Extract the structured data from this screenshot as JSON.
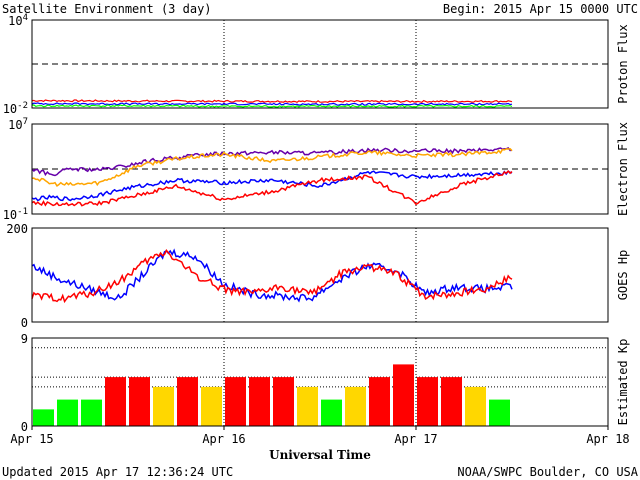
{
  "header": {
    "title": "Satellite Environment (3 day)",
    "begin": "Begin:  2015 Apr 15 0000 UTC"
  },
  "footer": {
    "updated": "Updated 2015 Apr 17 12:36:24 UTC",
    "credit": "NOAA/SWPC Boulder, CO USA"
  },
  "colors": {
    "red": "#ff0000",
    "blue": "#0000ff",
    "green": "#00ff00",
    "orange": "#ffa500",
    "purple": "#6600aa",
    "yellow": "#ffd700"
  },
  "chart_data": [
    {
      "id": "proton",
      "type": "line",
      "ylabel": "Proton Flux",
      "yscale": "log",
      "ylim": [
        0.01,
        10000
      ],
      "ytick_labels": [
        {
          "value": 10000,
          "base": "10",
          "exp": "4"
        },
        {
          "value": 0.01,
          "base": "10",
          "exp": "-2"
        }
      ],
      "reference_line": 10,
      "x_range_days": [
        0,
        3
      ],
      "series": [
        {
          "color": "#ff0000",
          "x": [
            0,
            0.5,
            1.0,
            1.5,
            2.0,
            2.5
          ],
          "y": [
            0.032,
            0.03,
            0.029,
            0.028,
            0.028,
            0.029
          ]
        },
        {
          "color": "#0000ff",
          "x": [
            0,
            0.5,
            1.0,
            1.5,
            2.0,
            2.5
          ],
          "y": [
            0.02,
            0.019,
            0.019,
            0.018,
            0.018,
            0.019
          ]
        },
        {
          "color": "#00ff00",
          "x": [
            0,
            0.5,
            1.0,
            1.5,
            2.0,
            2.5
          ],
          "y": [
            0.014,
            0.014,
            0.013,
            0.013,
            0.013,
            0.013
          ]
        }
      ]
    },
    {
      "id": "electron",
      "type": "line",
      "ylabel": "Electron Flux",
      "yscale": "log",
      "ylim": [
        0.1,
        10000000
      ],
      "ytick_labels": [
        {
          "value": 10000000,
          "base": "10",
          "exp": "7"
        },
        {
          "value": 0.1,
          "base": "10",
          "exp": "-1"
        }
      ],
      "reference_line": 1000,
      "x_range_days": [
        0,
        3
      ],
      "series": [
        {
          "color": "#6600aa",
          "x": [
            0,
            0.1,
            0.2,
            0.35,
            0.5,
            0.6,
            0.75,
            0.9,
            1.0,
            1.25,
            1.5,
            1.75,
            2.0,
            2.25,
            2.5
          ],
          "y": [
            1000,
            300,
            1000,
            800,
            2000,
            5000,
            10000,
            20000,
            25000,
            30000,
            25000,
            50000,
            40000,
            40000,
            60000
          ]
        },
        {
          "color": "#ffa500",
          "x": [
            0,
            0.1,
            0.2,
            0.35,
            0.45,
            0.55,
            0.75,
            0.9,
            1.0,
            1.25,
            1.5,
            1.75,
            2.0,
            2.25,
            2.5
          ],
          "y": [
            200,
            50,
            40,
            60,
            300,
            2000,
            8000,
            15000,
            20000,
            5000,
            12000,
            30000,
            15000,
            20000,
            50000
          ]
        },
        {
          "color": "#0000ff",
          "x": [
            0,
            0.1,
            0.2,
            0.35,
            0.5,
            0.75,
            1.0,
            1.25,
            1.5,
            1.75,
            2.0,
            2.25,
            2.5
          ],
          "y": [
            2,
            3,
            2,
            5,
            20,
            100,
            60,
            100,
            30,
            500,
            200,
            300,
            500
          ]
        },
        {
          "color": "#ff0000",
          "x": [
            0,
            0.1,
            0.2,
            0.35,
            0.5,
            0.75,
            1.0,
            1.25,
            1.5,
            1.75,
            2.0,
            2.25,
            2.5
          ],
          "y": [
            1,
            0.8,
            0.7,
            0.9,
            3,
            30,
            2,
            10,
            100,
            200,
            1,
            50,
            600
          ]
        }
      ]
    },
    {
      "id": "hp",
      "type": "line",
      "ylabel": "GOES Hp",
      "yscale": "linear",
      "ylim": [
        0,
        200
      ],
      "ytick_labels": [
        {
          "value": 200,
          "text": "200"
        },
        {
          "value": 0,
          "text": "0"
        }
      ],
      "x_range_days": [
        0,
        3
      ],
      "series": [
        {
          "color": "#0000ff",
          "x": [
            0,
            0.15,
            0.3,
            0.45,
            0.6,
            0.7,
            0.85,
            1.0,
            1.15,
            1.3,
            1.45,
            1.6,
            1.75,
            1.9,
            2.05,
            2.2,
            2.35,
            2.5
          ],
          "y": [
            120,
            90,
            70,
            50,
            110,
            150,
            140,
            80,
            60,
            55,
            50,
            90,
            120,
            110,
            60,
            75,
            70,
            75
          ]
        },
        {
          "color": "#ff0000",
          "x": [
            0,
            0.15,
            0.3,
            0.45,
            0.6,
            0.7,
            0.85,
            1.0,
            1.15,
            1.3,
            1.45,
            1.6,
            1.75,
            1.9,
            2.05,
            2.2,
            2.35,
            2.5
          ],
          "y": [
            55,
            50,
            60,
            85,
            130,
            150,
            100,
            70,
            60,
            75,
            60,
            100,
            120,
            100,
            55,
            60,
            70,
            95
          ]
        }
      ]
    },
    {
      "id": "kp",
      "type": "bar",
      "ylabel": "Estimated Kp",
      "ylim": [
        0,
        9
      ],
      "ytick_labels": [
        {
          "value": 9,
          "text": "9"
        },
        {
          "value": 0,
          "text": "0"
        }
      ],
      "reference_lines": [
        4,
        5,
        8,
        9
      ],
      "x_range_days": [
        0,
        3
      ],
      "bar_width_days": 0.125,
      "bars": [
        {
          "start": 0.0,
          "value": 1.7,
          "color": "#00ff00"
        },
        {
          "start": 0.125,
          "value": 2.7,
          "color": "#00ff00"
        },
        {
          "start": 0.25,
          "value": 2.7,
          "color": "#00ff00"
        },
        {
          "start": 0.375,
          "value": 5.0,
          "color": "#ff0000"
        },
        {
          "start": 0.5,
          "value": 5.0,
          "color": "#ff0000"
        },
        {
          "start": 0.625,
          "value": 4.0,
          "color": "#ffd700"
        },
        {
          "start": 0.75,
          "value": 5.0,
          "color": "#ff0000"
        },
        {
          "start": 0.875,
          "value": 4.0,
          "color": "#ffd700"
        },
        {
          "start": 1.0,
          "value": 5.0,
          "color": "#ff0000"
        },
        {
          "start": 1.125,
          "value": 5.0,
          "color": "#ff0000"
        },
        {
          "start": 1.25,
          "value": 5.0,
          "color": "#ff0000"
        },
        {
          "start": 1.375,
          "value": 4.0,
          "color": "#ffd700"
        },
        {
          "start": 1.5,
          "value": 2.7,
          "color": "#00ff00"
        },
        {
          "start": 1.625,
          "value": 4.0,
          "color": "#ffd700"
        },
        {
          "start": 1.75,
          "value": 5.0,
          "color": "#ff0000"
        },
        {
          "start": 1.875,
          "value": 6.3,
          "color": "#ff0000"
        },
        {
          "start": 2.0,
          "value": 5.0,
          "color": "#ff0000"
        },
        {
          "start": 2.125,
          "value": 5.0,
          "color": "#ff0000"
        },
        {
          "start": 2.25,
          "value": 4.0,
          "color": "#ffd700"
        },
        {
          "start": 2.375,
          "value": 2.7,
          "color": "#00ff00"
        }
      ]
    }
  ],
  "x_axis": {
    "label": "Universal Time",
    "ticks": [
      {
        "day": 0,
        "label": "Apr 15"
      },
      {
        "day": 1,
        "label": "Apr 16"
      },
      {
        "day": 2,
        "label": "Apr 17"
      },
      {
        "day": 3,
        "label": "Apr 18"
      }
    ]
  }
}
